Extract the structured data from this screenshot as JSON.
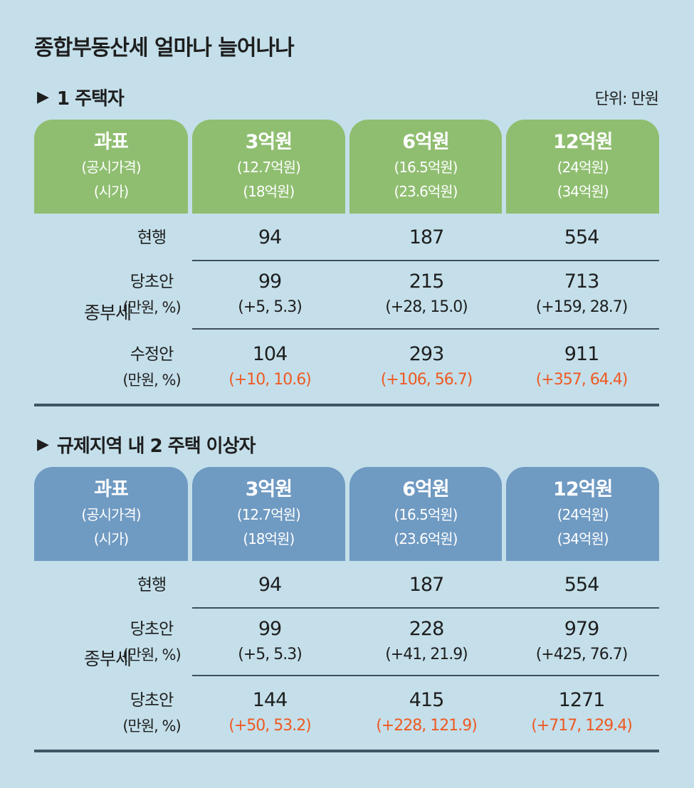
{
  "title": "종합부동산세 얼마나 늘어나나",
  "unit": "단위: 만원",
  "header": {
    "c0": {
      "main": "과표",
      "l1": "(공시가격)",
      "l2": "(시가)"
    },
    "c1": {
      "main": "3억원",
      "l1": "(12.7억원)",
      "l2": "(18억원)"
    },
    "c2": {
      "main": "6억원",
      "l1": "(16.5억원)",
      "l2": "(23.6억원)"
    },
    "c3": {
      "main": "12억원",
      "l1": "(24억원)",
      "l2": "(34억원)"
    }
  },
  "group_label": "종부세",
  "section1": {
    "title": "1 주택자",
    "rows": [
      {
        "label": "현행",
        "label_sub": "",
        "c1": "94",
        "c1_sub": "",
        "c2": "187",
        "c2_sub": "",
        "c3": "554",
        "c3_sub": ""
      },
      {
        "label": "당초안",
        "label_sub": "(만원, %)",
        "c1": "99",
        "c1_sub": "(+5, 5.3)",
        "c2": "215",
        "c2_sub": "(+28, 15.0)",
        "c3": "713",
        "c3_sub": "(+159, 28.7)"
      },
      {
        "label": "수정안",
        "label_sub": "(만원, %)",
        "c1": "104",
        "c1_sub": "(+10, 10.6)",
        "c2": "293",
        "c2_sub": "(+106, 56.7)",
        "c3": "911",
        "c3_sub": "(+357, 64.4)"
      }
    ]
  },
  "section2": {
    "title": "규제지역 내 2 주택 이상자",
    "rows": [
      {
        "label": "현행",
        "label_sub": "",
        "c1": "94",
        "c1_sub": "",
        "c2": "187",
        "c2_sub": "",
        "c3": "554",
        "c3_sub": ""
      },
      {
        "label": "당초안",
        "label_sub": "(만원, %)",
        "c1": "99",
        "c1_sub": "(+5, 5.3)",
        "c2": "228",
        "c2_sub": "(+41, 21.9)",
        "c3": "979",
        "c3_sub": "(+425, 76.7)"
      },
      {
        "label": "당초안",
        "label_sub": "(만원, %)",
        "c1": "144",
        "c1_sub": "(+50, 53.2)",
        "c2": "415",
        "c2_sub": "(+228, 121.9)",
        "c3": "1271",
        "c3_sub": "(+717, 129.4)"
      }
    ]
  },
  "colors": {
    "background": "#c4dfea",
    "header_green": "#8fbe70",
    "header_blue": "#6f9ac2",
    "highlight_red": "#ee5a23"
  },
  "icons": {
    "section_marker": "triangle-right-icon"
  }
}
